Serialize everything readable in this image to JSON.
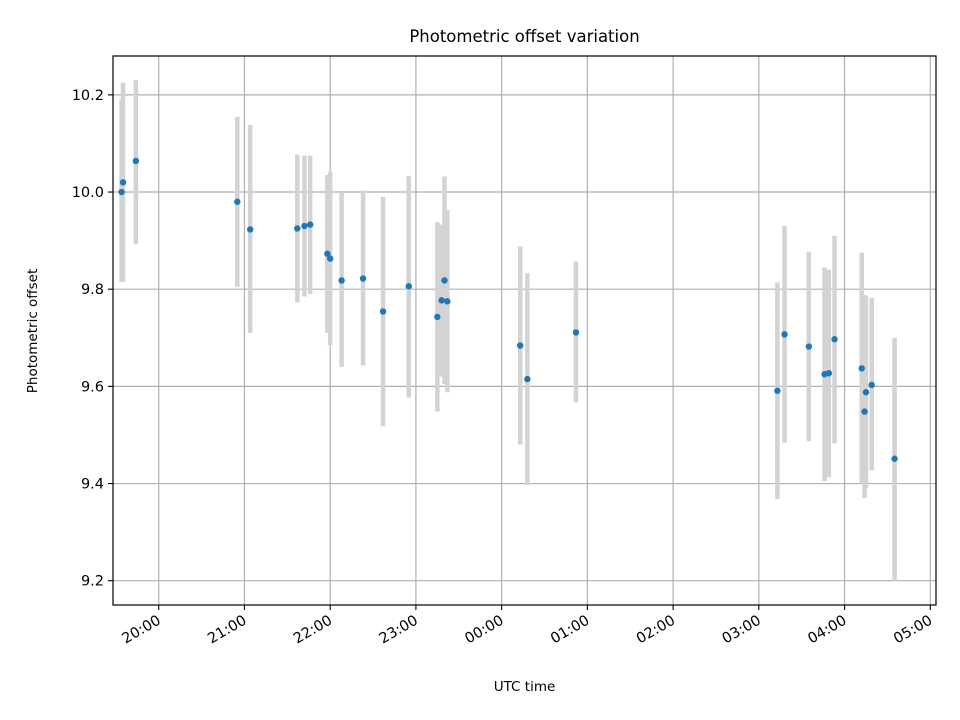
{
  "chart_data": {
    "type": "scatter",
    "title": "Photometric offset variation",
    "xlabel": "UTC time",
    "ylabel": "Photometric offset",
    "xlim": [
      "2024-01-01 19:28",
      "2024-01-02 05:04"
    ],
    "ylim": [
      9.15,
      10.28
    ],
    "grid": true,
    "x_tick_labels": [
      "20:00",
      "21:00",
      "22:00",
      "23:00",
      "00:00",
      "01:00",
      "02:00",
      "03:00",
      "04:00",
      "05:00"
    ],
    "x_ticks": [
      "2024-01-01 20:00",
      "2024-01-01 21:00",
      "2024-01-01 22:00",
      "2024-01-01 23:00",
      "2024-01-02 00:00",
      "2024-01-02 01:00",
      "2024-01-02 02:00",
      "2024-01-02 03:00",
      "2024-01-02 04:00",
      "2024-01-02 05:00"
    ],
    "y_ticks": [
      9.2,
      9.4,
      9.6,
      9.8,
      10.0,
      10.2
    ],
    "y_tick_labels": [
      "9.2",
      "9.4",
      "9.6",
      "9.8",
      "10.0",
      "10.2"
    ],
    "point_color": "#1f77b4",
    "errorbar_color": "#d3d3d3",
    "points": [
      {
        "x": "2024-01-01 19:34",
        "y": 10.0,
        "ylow": 9.815,
        "yhigh": 10.19
      },
      {
        "x": "2024-01-01 19:35",
        "y": 10.02,
        "ylow": 9.815,
        "yhigh": 10.225
      },
      {
        "x": "2024-01-01 19:44",
        "y": 10.064,
        "ylow": 9.893,
        "yhigh": 10.23
      },
      {
        "x": "2024-01-01 20:55",
        "y": 9.98,
        "ylow": 9.805,
        "yhigh": 10.155
      },
      {
        "x": "2024-01-01 21:04",
        "y": 9.923,
        "ylow": 9.71,
        "yhigh": 10.138
      },
      {
        "x": "2024-01-01 21:37",
        "y": 9.925,
        "ylow": 9.773,
        "yhigh": 10.077
      },
      {
        "x": "2024-01-01 21:42",
        "y": 9.93,
        "ylow": 9.785,
        "yhigh": 10.075
      },
      {
        "x": "2024-01-01 21:46",
        "y": 9.933,
        "ylow": 9.79,
        "yhigh": 10.075
      },
      {
        "x": "2024-01-01 21:58",
        "y": 9.873,
        "ylow": 9.71,
        "yhigh": 10.035
      },
      {
        "x": "2024-01-01 22:00",
        "y": 9.863,
        "ylow": 9.685,
        "yhigh": 10.042
      },
      {
        "x": "2024-01-01 22:08",
        "y": 9.818,
        "ylow": 9.64,
        "yhigh": 9.998
      },
      {
        "x": "2024-01-01 22:23",
        "y": 9.822,
        "ylow": 9.643,
        "yhigh": 10.003
      },
      {
        "x": "2024-01-01 22:37",
        "y": 9.754,
        "ylow": 9.518,
        "yhigh": 9.99
      },
      {
        "x": "2024-01-01 22:55",
        "y": 9.806,
        "ylow": 9.577,
        "yhigh": 10.033
      },
      {
        "x": "2024-01-01 23:15",
        "y": 9.743,
        "ylow": 9.548,
        "yhigh": 9.938
      },
      {
        "x": "2024-01-01 23:18",
        "y": 9.777,
        "ylow": 9.62,
        "yhigh": 9.933
      },
      {
        "x": "2024-01-01 23:20",
        "y": 9.818,
        "ylow": 9.605,
        "yhigh": 10.032
      },
      {
        "x": "2024-01-01 23:22",
        "y": 9.775,
        "ylow": 9.588,
        "yhigh": 9.963
      },
      {
        "x": "2024-01-02 00:13",
        "y": 9.684,
        "ylow": 9.48,
        "yhigh": 9.888
      },
      {
        "x": "2024-01-02 00:18",
        "y": 9.615,
        "ylow": 9.397,
        "yhigh": 9.833
      },
      {
        "x": "2024-01-02 00:52",
        "y": 9.711,
        "ylow": 9.567,
        "yhigh": 9.857
      },
      {
        "x": "2024-01-02 03:13",
        "y": 9.591,
        "ylow": 9.368,
        "yhigh": 9.814
      },
      {
        "x": "2024-01-02 03:18",
        "y": 9.707,
        "ylow": 9.484,
        "yhigh": 9.93
      },
      {
        "x": "2024-01-02 03:35",
        "y": 9.682,
        "ylow": 9.487,
        "yhigh": 9.877
      },
      {
        "x": "2024-01-02 03:46",
        "y": 9.625,
        "ylow": 9.405,
        "yhigh": 9.845
      },
      {
        "x": "2024-01-02 03:49",
        "y": 9.627,
        "ylow": 9.413,
        "yhigh": 9.84
      },
      {
        "x": "2024-01-02 03:53",
        "y": 9.697,
        "ylow": 9.483,
        "yhigh": 9.91
      },
      {
        "x": "2024-01-02 04:12",
        "y": 9.637,
        "ylow": 9.4,
        "yhigh": 9.875
      },
      {
        "x": "2024-01-02 04:14",
        "y": 9.548,
        "ylow": 9.37,
        "yhigh": 9.788
      },
      {
        "x": "2024-01-02 04:15",
        "y": 9.588,
        "ylow": 9.39,
        "yhigh": 9.786
      },
      {
        "x": "2024-01-02 04:19",
        "y": 9.603,
        "ylow": 9.427,
        "yhigh": 9.782
      },
      {
        "x": "2024-01-02 04:35",
        "y": 9.451,
        "ylow": 9.2,
        "yhigh": 9.7
      }
    ]
  }
}
